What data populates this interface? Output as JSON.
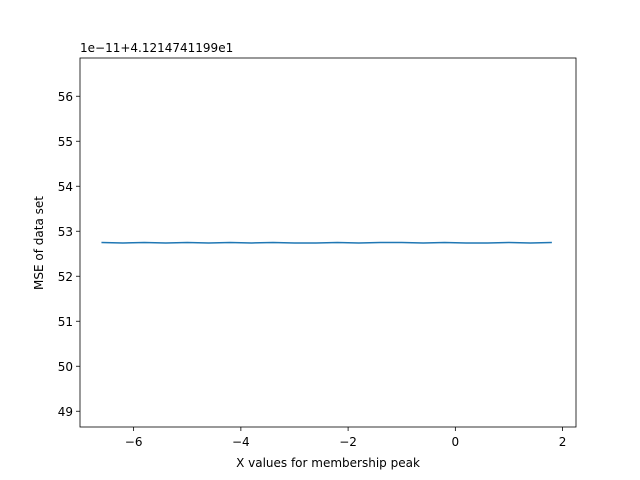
{
  "chart_data": {
    "type": "line",
    "title": "",
    "xlabel": "X values for membership peak",
    "ylabel": "MSE of data set",
    "offset_text": "1e−11+4.1214741199e1",
    "xlim": [
      -7.0,
      2.25
    ],
    "ylim": [
      48.65,
      56.85
    ],
    "xticks": [
      -6,
      -4,
      -2,
      0,
      2
    ],
    "xtick_labels": [
      "−6",
      "−4",
      "−2",
      "0",
      "2"
    ],
    "yticks": [
      49,
      50,
      51,
      52,
      53,
      54,
      55,
      56
    ],
    "ytick_labels": [
      "49",
      "50",
      "51",
      "52",
      "53",
      "54",
      "55",
      "56"
    ],
    "grid": false,
    "legend": "none",
    "series": [
      {
        "color": "#1f77b4",
        "x": [
          -6.6,
          -6.2,
          -5.8,
          -5.4,
          -5.0,
          -4.6,
          -4.2,
          -3.8,
          -3.4,
          -3.0,
          -2.6,
          -2.2,
          -1.8,
          -1.4,
          -1.0,
          -0.6,
          -0.2,
          0.2,
          0.6,
          1.0,
          1.4,
          1.8
        ],
        "y": [
          52.75,
          52.74,
          52.75,
          52.74,
          52.75,
          52.74,
          52.75,
          52.74,
          52.75,
          52.74,
          52.74,
          52.75,
          52.74,
          52.75,
          52.75,
          52.74,
          52.75,
          52.74,
          52.74,
          52.75,
          52.74,
          52.75
        ]
      }
    ]
  }
}
